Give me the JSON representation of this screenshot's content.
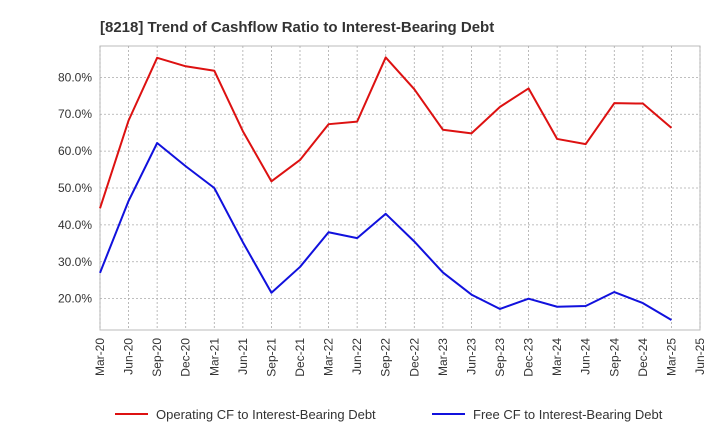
{
  "chart_data": {
    "type": "line",
    "title": "[8218]  Trend of Cashflow Ratio to Interest-Bearing Debt",
    "xlabel": "",
    "ylabel": "",
    "categories": [
      "Mar-20",
      "Jun-20",
      "Sep-20",
      "Dec-20",
      "Mar-21",
      "Jun-21",
      "Sep-21",
      "Dec-21",
      "Mar-22",
      "Jun-22",
      "Sep-22",
      "Dec-22",
      "Mar-23",
      "Jun-23",
      "Sep-23",
      "Dec-23",
      "Mar-24",
      "Jun-24",
      "Sep-24",
      "Dec-24",
      "Mar-25",
      "Jun-25"
    ],
    "y_ticks": [
      "20.0%",
      "30.0%",
      "40.0%",
      "50.0%",
      "60.0%",
      "70.0%",
      "80.0%"
    ],
    "ylim": [
      11.5,
      88.5
    ],
    "grid": true,
    "legend_position": "bottom",
    "series": [
      {
        "name": "Operating CF to Interest-Bearing Debt",
        "color": "#dd1111",
        "values": [
          44.5,
          68.3,
          85.3,
          83.0,
          81.8,
          65.4,
          51.8,
          57.6,
          67.3,
          68.0,
          85.4,
          76.8,
          65.8,
          64.8,
          72.0,
          77.0,
          63.3,
          61.9,
          73.0,
          72.9,
          66.3,
          null
        ]
      },
      {
        "name": "Free CF to Interest-Bearing Debt",
        "color": "#1111dd",
        "values": [
          27.0,
          46.5,
          62.2,
          55.9,
          50.0,
          35.3,
          21.6,
          28.6,
          38.0,
          36.4,
          43.0,
          35.5,
          27.1,
          21.1,
          17.2,
          20.0,
          17.8,
          18.0,
          21.8,
          18.8,
          14.2,
          null
        ]
      }
    ]
  }
}
